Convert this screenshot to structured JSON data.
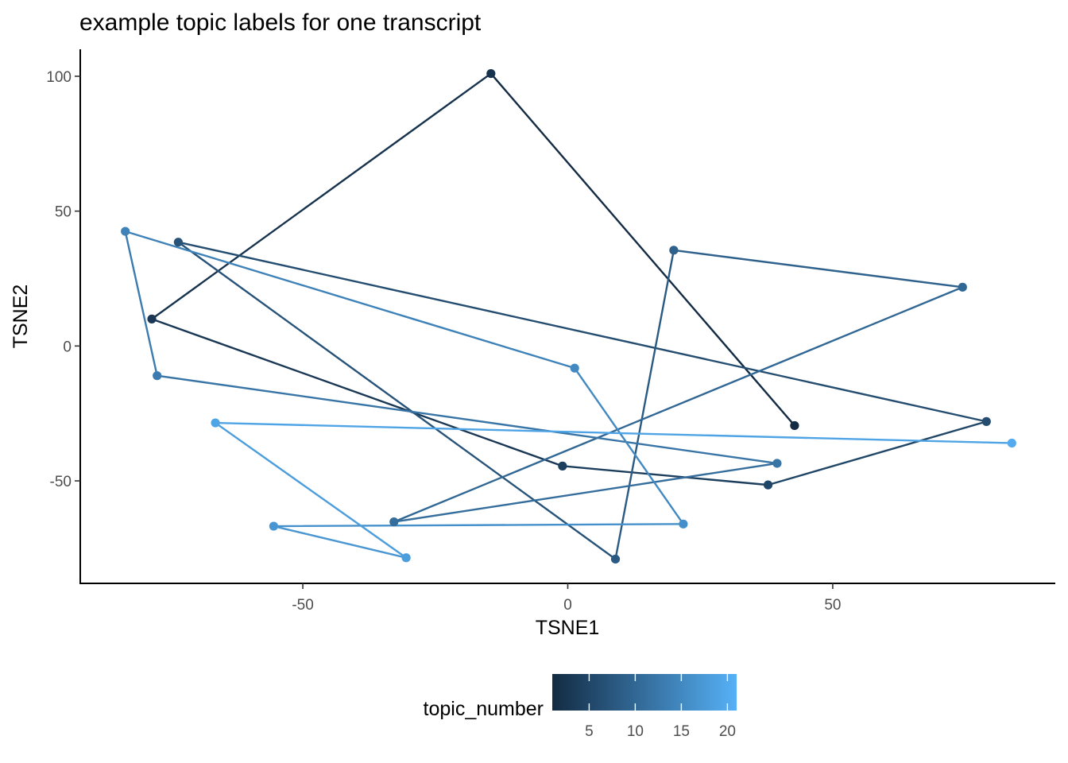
{
  "chart_data": {
    "type": "line",
    "title": "example topic labels for one transcript",
    "xlabel": "TSNE1",
    "ylabel": "TSNE2",
    "xlim": [
      -92,
      92
    ],
    "ylim": [
      -88,
      110
    ],
    "x_ticks": [
      -50,
      0,
      50
    ],
    "y_ticks": [
      -50,
      0,
      50,
      100
    ],
    "x_tick_labels": [
      "-50",
      "0",
      "50"
    ],
    "y_tick_labels": [
      "-50",
      "0",
      "50",
      "100"
    ],
    "grid": false,
    "legend": {
      "title": "topic_number",
      "placement": "bottom",
      "type": "colorbar",
      "range": [
        1,
        21
      ],
      "ticks": [
        5,
        10,
        15,
        20
      ],
      "tick_labels": [
        "5",
        "10",
        "15",
        "20"
      ],
      "color_low": "#132b43",
      "color_high": "#56b1f7"
    },
    "points": [
      {
        "topic_number": 1,
        "x": 42.8,
        "y": -29.5
      },
      {
        "topic_number": 2,
        "x": -14.5,
        "y": 101.0
      },
      {
        "topic_number": 3,
        "x": -78.5,
        "y": 10.0
      },
      {
        "topic_number": 4,
        "x": -1.0,
        "y": -44.5
      },
      {
        "topic_number": 5,
        "x": 37.8,
        "y": -51.5
      },
      {
        "topic_number": 6,
        "x": 79.0,
        "y": -28.0
      },
      {
        "topic_number": 7,
        "x": -73.5,
        "y": 38.5
      },
      {
        "topic_number": 8,
        "x": 9.0,
        "y": -79.0
      },
      {
        "topic_number": 9,
        "x": 20.0,
        "y": 35.5
      },
      {
        "topic_number": 10,
        "x": 74.5,
        "y": 21.8
      },
      {
        "topic_number": 11,
        "x": -32.8,
        "y": -65.2
      },
      {
        "topic_number": 12,
        "x": 39.5,
        "y": -43.5
      },
      {
        "topic_number": 13,
        "x": -77.5,
        "y": -11.0
      },
      {
        "topic_number": 14,
        "x": -83.5,
        "y": 42.5
      },
      {
        "topic_number": 15,
        "x": 1.3,
        "y": -8.2
      },
      {
        "topic_number": 16,
        "x": 21.8,
        "y": -66.0
      },
      {
        "topic_number": 17,
        "x": -55.5,
        "y": -66.8
      },
      {
        "topic_number": 18,
        "x": -30.5,
        "y": -78.5
      },
      {
        "topic_number": 19,
        "x": -66.5,
        "y": -28.5
      },
      {
        "topic_number": 20,
        "x": 83.8,
        "y": -36.0
      }
    ]
  }
}
